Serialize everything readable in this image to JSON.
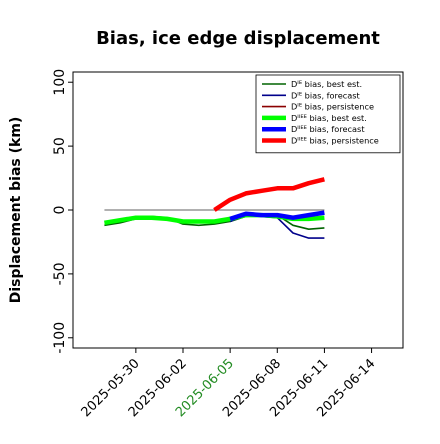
{
  "chart_data": {
    "type": "line",
    "title": "Bias, ice edge displacement",
    "ylabel": "Displacement bias (km)",
    "xlabel": "",
    "ylim": [
      -108,
      108
    ],
    "yticks": [
      -100,
      -50,
      0,
      50,
      100
    ],
    "xlim": [
      "2025-05-26",
      "2025-06-16"
    ],
    "xticks": [
      "2025-05-30",
      "2025-06-02",
      "2025-06-05",
      "2025-06-08",
      "2025-06-11",
      "2025-06-14"
    ],
    "xtick_colors": [
      "#000000",
      "#000000",
      "#228b22",
      "#000000",
      "#000000",
      "#000000"
    ],
    "grid": false,
    "legend_position": "top-right",
    "reference_line": {
      "value": 0,
      "from": "2025-05-28",
      "to": "2025-06-11",
      "color": "#808080"
    },
    "series": [
      {
        "name": "Dᴵᴱ bias, best est.",
        "color": "#006400",
        "style": "thin",
        "x": [
          "2025-05-28",
          "2025-05-29",
          "2025-05-30",
          "2025-05-31",
          "2025-06-01",
          "2025-06-02",
          "2025-06-03",
          "2025-06-04",
          "2025-06-05",
          "2025-06-06",
          "2025-06-07",
          "2025-06-08",
          "2025-06-09",
          "2025-06-10",
          "2025-06-11"
        ],
        "y": [
          -12,
          -10,
          -7,
          -5,
          -6,
          -11,
          -12,
          -11,
          -9,
          -5,
          -4,
          -4,
          -12,
          -15,
          -14
        ]
      },
      {
        "name": "Dᴵᴱ bias, forecast",
        "color": "#00008b",
        "style": "thin",
        "x": [
          "2025-06-05",
          "2025-06-06",
          "2025-06-07",
          "2025-06-08",
          "2025-06-09",
          "2025-06-10",
          "2025-06-11"
        ],
        "y": [
          -9,
          -4,
          -5,
          -6,
          -18,
          -22,
          -22
        ]
      },
      {
        "name": "Dᴵᴱ bias, persistence",
        "color": "#8b0000",
        "style": "thin",
        "x": [
          "2025-06-04",
          "2025-06-05",
          "2025-06-06",
          "2025-06-07",
          "2025-06-08",
          "2025-06-09",
          "2025-06-10",
          "2025-06-11"
        ],
        "y": [
          0,
          8,
          13,
          15,
          16,
          17,
          21,
          23
        ]
      },
      {
        "name": "Dᴵᴵᴱᴱ bias, best est.",
        "color": "#00ff00",
        "style": "thick",
        "x": [
          "2025-05-28",
          "2025-05-29",
          "2025-05-30",
          "2025-05-31",
          "2025-06-01",
          "2025-06-02",
          "2025-06-03",
          "2025-06-04",
          "2025-06-05",
          "2025-06-06",
          "2025-06-07",
          "2025-06-08",
          "2025-06-09",
          "2025-06-10",
          "2025-06-11"
        ],
        "y": [
          -10,
          -8,
          -6,
          -6,
          -7,
          -9,
          -9,
          -9,
          -7,
          -4,
          -4,
          -5,
          -7,
          -7,
          -6
        ]
      },
      {
        "name": "Dᴵᴵᴱᴱ bias, forecast",
        "color": "#0000ff",
        "style": "thick",
        "x": [
          "2025-06-05",
          "2025-06-06",
          "2025-06-07",
          "2025-06-08",
          "2025-06-09",
          "2025-06-10",
          "2025-06-11"
        ],
        "y": [
          -7,
          -3,
          -4,
          -4,
          -6,
          -4,
          -2
        ]
      },
      {
        "name": "Dᴵᴵᴱᴱ bias, persistence",
        "color": "#ff0000",
        "style": "thick",
        "x": [
          "2025-06-04",
          "2025-06-05",
          "2025-06-06",
          "2025-06-07",
          "2025-06-08",
          "2025-06-09",
          "2025-06-10",
          "2025-06-11"
        ],
        "y": [
          0,
          8,
          13,
          15,
          17,
          17,
          21,
          24
        ]
      }
    ]
  }
}
